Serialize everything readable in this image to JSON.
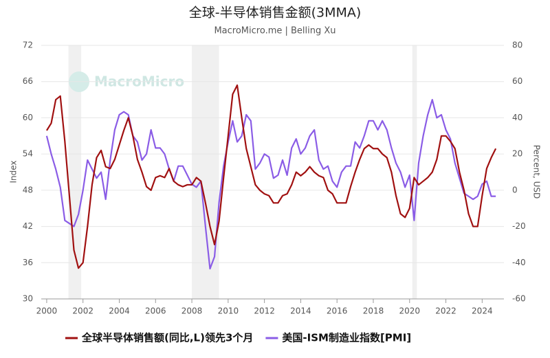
{
  "chart_data": {
    "type": "line",
    "title": "全球-半导体销售金额(3MMA)",
    "subtitle": "MacroMicro.me | Belling Xu",
    "watermark": "MacroMicro",
    "ylabel": "Index",
    "y2label": "Percent, USD",
    "x": [
      2000.0,
      2000.25,
      2000.5,
      2000.75,
      2001.0,
      2001.25,
      2001.5,
      2001.75,
      2002.0,
      2002.25,
      2002.5,
      2002.75,
      2003.0,
      2003.25,
      2003.5,
      2003.75,
      2004.0,
      2004.25,
      2004.5,
      2004.75,
      2005.0,
      2005.25,
      2005.5,
      2005.75,
      2006.0,
      2006.25,
      2006.5,
      2006.75,
      2007.0,
      2007.25,
      2007.5,
      2007.75,
      2008.0,
      2008.25,
      2008.5,
      2008.75,
      2009.0,
      2009.25,
      2009.5,
      2009.75,
      2010.0,
      2010.25,
      2010.5,
      2010.75,
      2011.0,
      2011.25,
      2011.5,
      2011.75,
      2012.0,
      2012.25,
      2012.5,
      2012.75,
      2013.0,
      2013.25,
      2013.5,
      2013.75,
      2014.0,
      2014.25,
      2014.5,
      2014.75,
      2015.0,
      2015.25,
      2015.5,
      2015.75,
      2016.0,
      2016.25,
      2016.5,
      2016.75,
      2017.0,
      2017.25,
      2017.5,
      2017.75,
      2018.0,
      2018.25,
      2018.5,
      2018.75,
      2019.0,
      2019.25,
      2019.5,
      2019.75,
      2020.0,
      2020.25,
      2020.5,
      2020.75,
      2021.0,
      2021.25,
      2021.5,
      2021.75,
      2022.0,
      2022.25,
      2022.5,
      2022.75,
      2023.0,
      2023.25,
      2023.5,
      2023.75,
      2024.0,
      2024.25,
      2024.5,
      2024.75
    ],
    "series": [
      {
        "name": "全球半导体销售额(同比,L)领先3个月",
        "color": "#a01010",
        "axis": "y2",
        "values": [
          33,
          37,
          50,
          52,
          27,
          -3,
          -33,
          -43,
          -40,
          -20,
          3,
          18,
          22,
          13,
          12,
          17,
          25,
          33,
          40,
          30,
          17,
          10,
          2,
          0,
          7,
          8,
          7,
          12,
          5,
          3,
          2,
          3,
          3,
          7,
          5,
          -7,
          -20,
          -30,
          -17,
          7,
          30,
          53,
          58,
          40,
          23,
          13,
          3,
          0,
          -2,
          -3,
          -7,
          -7,
          -3,
          -2,
          3,
          10,
          8,
          10,
          13,
          10,
          8,
          7,
          0,
          -2,
          -7,
          -7,
          -7,
          2,
          10,
          17,
          23,
          25,
          23,
          23,
          20,
          18,
          10,
          -3,
          -13,
          -15,
          -10,
          7,
          3,
          5,
          7,
          10,
          17,
          30,
          30,
          27,
          23,
          10,
          0,
          -13,
          -20,
          -20,
          -3,
          12,
          18,
          23
        ]
      },
      {
        "name": "美国-ISM制造业指数[PMI]",
        "color": "#8a5ce6",
        "values": [
          57,
          54,
          51.5,
          48.5,
          43,
          42.5,
          42,
          44,
          48,
          53,
          51.5,
          50,
          51,
          46.5,
          53,
          58,
          60.5,
          61,
          60.5,
          57,
          56,
          53,
          54,
          58,
          55,
          55,
          54,
          51.5,
          49.5,
          52,
          52,
          50.5,
          49,
          48.5,
          49.5,
          42,
          35,
          37,
          46,
          52,
          56,
          59.5,
          56,
          57,
          60.5,
          59.5,
          51.5,
          52.5,
          54,
          53.5,
          50,
          50.5,
          53,
          50.5,
          55,
          56.5,
          54,
          55,
          57,
          58,
          53,
          51.5,
          52,
          49.5,
          48.5,
          51,
          52,
          52,
          56,
          55,
          57,
          59.5,
          59.5,
          58,
          59.5,
          58,
          55,
          52.5,
          51,
          48.5,
          50.5,
          43,
          52.5,
          57,
          60.5,
          63,
          60,
          60.5,
          58,
          56.5,
          52.5,
          50,
          47.5,
          47,
          46.5,
          47,
          49,
          49.5,
          47,
          47
        ]
      }
    ],
    "shaded_periods": [
      [
        2001.2,
        2001.9
      ],
      [
        2008.0,
        2009.5
      ],
      [
        2020.15,
        2020.4
      ]
    ],
    "xlim": [
      1999.7,
      2025.2
    ],
    "xticks": [
      2000,
      2002,
      2004,
      2006,
      2008,
      2010,
      2012,
      2014,
      2016,
      2018,
      2020,
      2022,
      2024
    ],
    "ylim": [
      30,
      72
    ],
    "yticks": [
      30,
      36,
      42,
      48,
      54,
      60,
      66,
      72
    ],
    "y2lim": [
      -60,
      80
    ],
    "y2ticks": [
      -60,
      -40,
      -20,
      0,
      20,
      40,
      60,
      80
    ],
    "grid": true
  }
}
